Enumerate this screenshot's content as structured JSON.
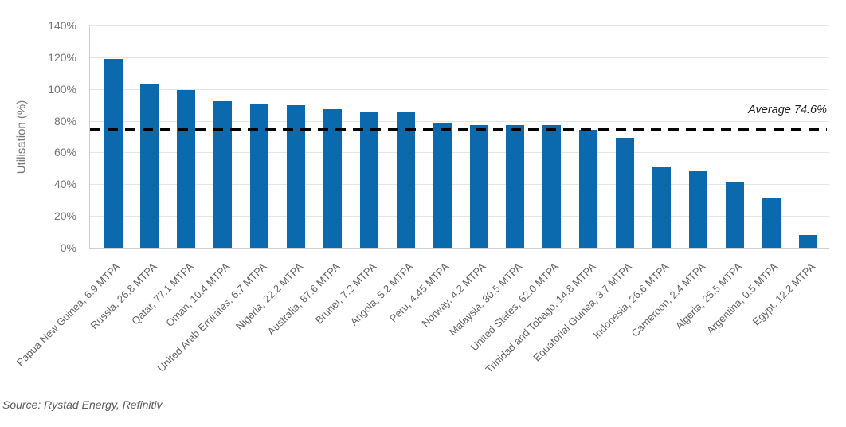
{
  "chart_data": {
    "type": "bar",
    "title": "",
    "xlabel": "",
    "ylabel": "Utilisation (%)",
    "ylim": [
      0,
      140
    ],
    "ytick_step": 20,
    "ytick_suffix": "%",
    "grid": true,
    "legend": false,
    "bar_color": "#0b69ad",
    "gridline_color": "#e5e5e5",
    "average_value": 74.6,
    "average_label": "Average 74.6%",
    "categories": [
      "Papua New Guinea, 6.9 MTPA",
      "Russia, 26.8 MTPA",
      "Qatar, 77.1 MTPA",
      "Oman, 10.4 MTPA",
      "United Arab Emirates, 6.7 MTPA",
      "Nigeria, 22.2 MTPA",
      "Australia, 87.6 MTPA",
      "Brunei, 7.2 MTPA",
      "Angola, 5.2 MTPA",
      "Peru, 4.45 MTPA",
      "Norway, 4.2 MTPA",
      "Malaysia, 30.5 MTPA",
      "United States, 62.0 MTPA",
      "Trinidad and Tobago, 14.8 MTPA",
      "Equatorial Guinea, 3.7 MTPA",
      "Indonesia, 26.6 MTPA",
      "Cameroon, 2.4 MTPA",
      "Algeria, 25.5 MTPA",
      "Argentina, 0.5 MTPA",
      "Egypt, 12.2 MTPA"
    ],
    "values": [
      119.0,
      103.4,
      99.4,
      92.3,
      90.8,
      89.8,
      87.3,
      85.8,
      85.8,
      78.6,
      77.1,
      77.4,
      77.4,
      74.1,
      69.1,
      50.7,
      48.2,
      41.1,
      31.5,
      8.0
    ]
  },
  "source_note": "Source: Rystad Energy, Refinitiv"
}
